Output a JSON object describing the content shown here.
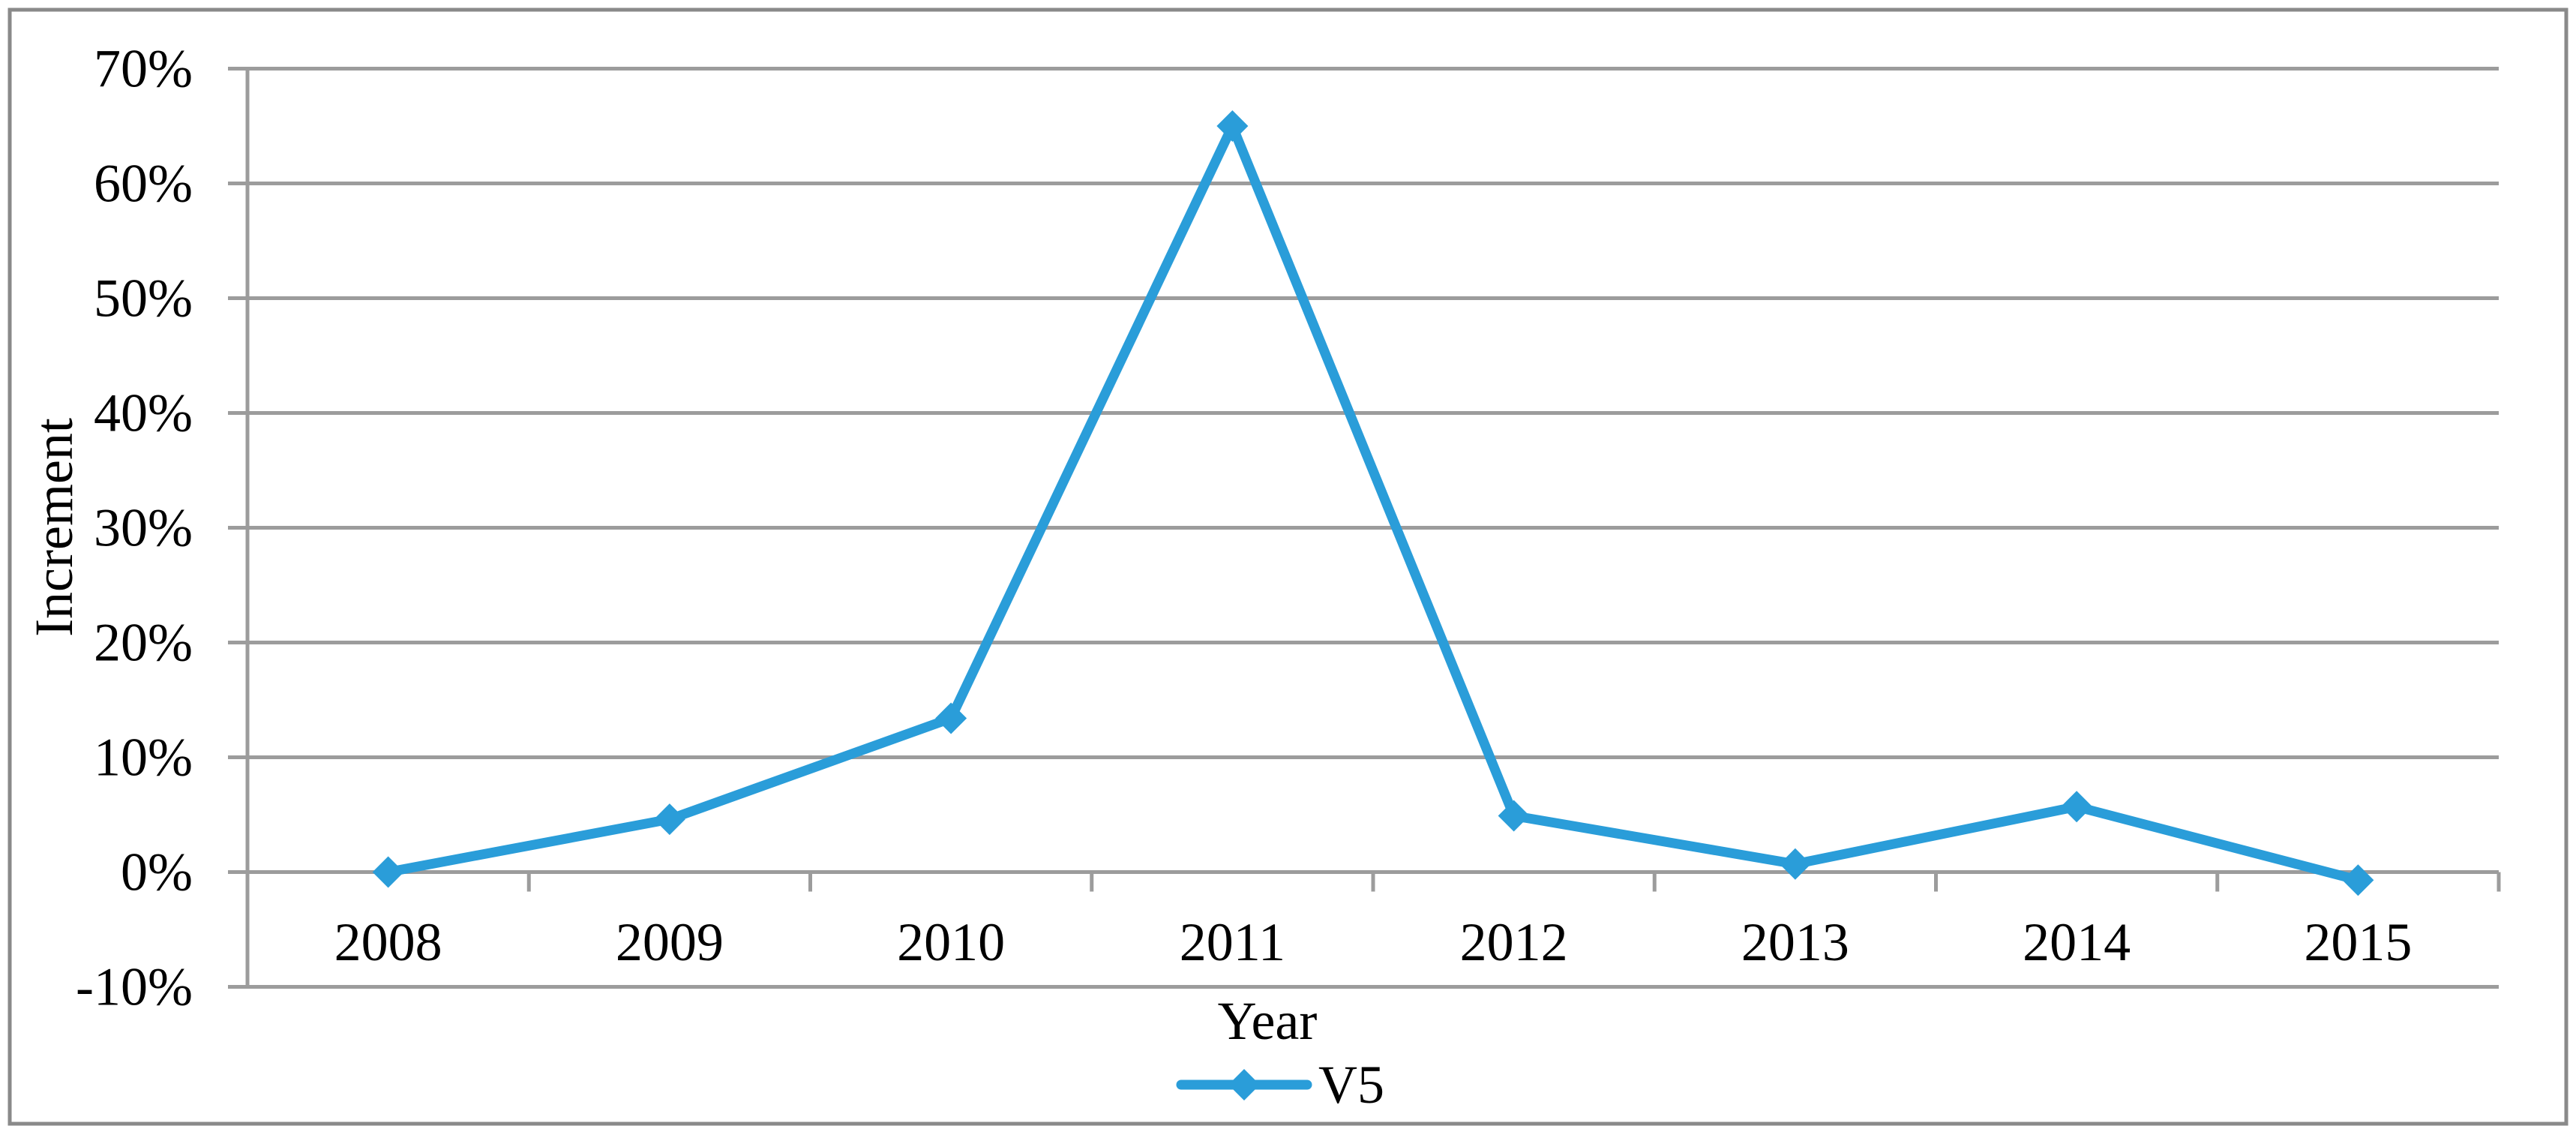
{
  "chart_data": {
    "type": "line",
    "title": "",
    "categories": [
      "2008",
      "2009",
      "2010",
      "2011",
      "2012",
      "2013",
      "2014",
      "2015"
    ],
    "series": [
      {
        "name": "V5",
        "values": [
          0.0,
          4.6,
          13.4,
          65.0,
          4.9,
          0.7,
          5.7,
          -0.7
        ],
        "color": "#2A9DD9",
        "marker": "diamond"
      }
    ],
    "xlabel": "Year",
    "ylabel": "Increment",
    "ylim": [
      -10,
      70
    ],
    "y_step": 10,
    "y_tick_labels": [
      "70%",
      "60%",
      "50%",
      "40%",
      "30%",
      "20%",
      "10%",
      "0%",
      "-10%"
    ],
    "y_tick_format": "percent",
    "grid": true,
    "legend_position": "bottom-center",
    "colors": {
      "series": "#2A9DD9",
      "gridline": "#9C9C9C",
      "axis": "#9C9C9C",
      "chart_border": "#8A8A8A",
      "text": "#000000",
      "background": "#FFFFFF"
    }
  }
}
